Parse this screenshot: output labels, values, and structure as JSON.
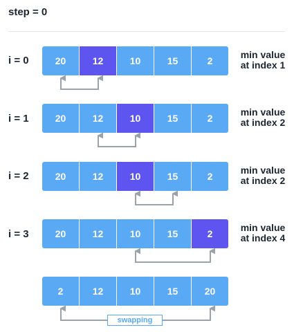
{
  "step": "step = 0",
  "rows": [
    {
      "label": "i = 0",
      "values": [
        "20",
        "12",
        "10",
        "15",
        "2"
      ],
      "highlight": 1,
      "min_line1": "min value",
      "min_line2": "at index 1",
      "arrow": [
        0,
        1
      ]
    },
    {
      "label": "i = 1",
      "values": [
        "20",
        "12",
        "10",
        "15",
        "2"
      ],
      "highlight": 2,
      "min_line1": "min value",
      "min_line2": "at index 2",
      "arrow": [
        1,
        2
      ]
    },
    {
      "label": "i = 2",
      "values": [
        "20",
        "12",
        "10",
        "15",
        "2"
      ],
      "highlight": 2,
      "min_line1": "min value",
      "min_line2": "at index 2",
      "arrow": [
        2,
        3
      ]
    },
    {
      "label": "i = 3",
      "values": [
        "20",
        "12",
        "10",
        "15",
        "2"
      ],
      "highlight": 4,
      "min_line1": "min value",
      "min_line2": "at index 4",
      "arrow": [
        2,
        4
      ]
    }
  ],
  "result": {
    "values": [
      "2",
      "12",
      "10",
      "15",
      "20"
    ],
    "arrow": [
      0,
      4
    ]
  },
  "swap_label": "swapping",
  "colors": {
    "cell": "#5aa9f5",
    "highlight": "#5e55f0",
    "arrow": "#9aa3aa"
  }
}
